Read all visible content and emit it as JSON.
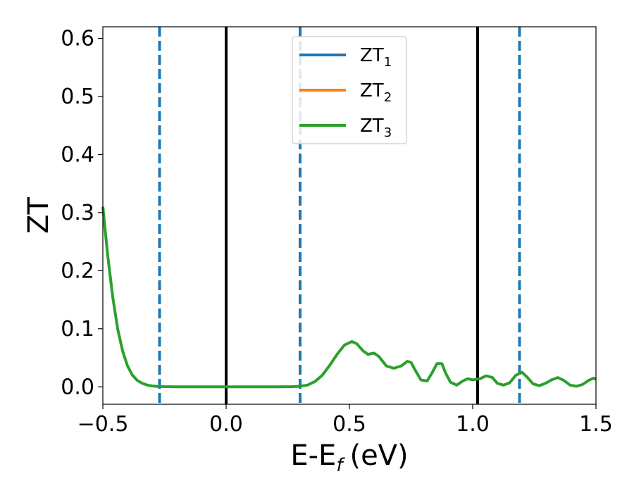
{
  "chart_data": {
    "type": "line",
    "xlabel": "E-E",
    "xlabel_sub": "f",
    "xlabel_unit": "(eV)",
    "ylabel": "ZT",
    "xlim": [
      -0.5,
      1.5
    ],
    "ylim": [
      -0.03,
      0.62
    ],
    "xticks": [
      -0.5,
      0.0,
      0.5,
      1.0,
      1.5
    ],
    "xtick_labels": [
      "−0.5",
      "0.0",
      "0.5",
      "1.0",
      "1.5"
    ],
    "yticks": [
      0.0,
      0.1,
      0.2,
      0.3,
      0.4,
      0.5,
      0.6
    ],
    "ytick_labels": [
      "0.0",
      "0.1",
      "0.2",
      "0.3",
      "0.4",
      "0.5",
      "0.6"
    ],
    "grid": false,
    "legend_position": "top-center",
    "series": [
      {
        "name": "ZT",
        "sub": "1",
        "color": "#1f77b4",
        "x": [],
        "y": []
      },
      {
        "name": "ZT",
        "sub": "2",
        "color": "#ff7f0e",
        "x": [],
        "y": []
      },
      {
        "name": "ZT",
        "sub": "3",
        "color": "#2ca02c",
        "x": [
          -0.5,
          -0.48,
          -0.46,
          -0.44,
          -0.42,
          -0.4,
          -0.38,
          -0.36,
          -0.34,
          -0.32,
          -0.3,
          -0.28,
          -0.25,
          -0.2,
          -0.1,
          0.0,
          0.1,
          0.2,
          0.27,
          0.3,
          0.33,
          0.36,
          0.39,
          0.42,
          0.45,
          0.48,
          0.51,
          0.53,
          0.555,
          0.575,
          0.6,
          0.62,
          0.65,
          0.68,
          0.71,
          0.735,
          0.75,
          0.765,
          0.79,
          0.815,
          0.835,
          0.855,
          0.875,
          0.89,
          0.91,
          0.935,
          0.96,
          0.98,
          1.0,
          1.03,
          1.055,
          1.08,
          1.1,
          1.125,
          1.15,
          1.175,
          1.2,
          1.22,
          1.245,
          1.27,
          1.295,
          1.32,
          1.345,
          1.37,
          1.395,
          1.42,
          1.445,
          1.47,
          1.49,
          1.51
        ],
        "y": [
          0.31,
          0.225,
          0.155,
          0.1,
          0.062,
          0.036,
          0.02,
          0.011,
          0.006,
          0.003,
          0.0015,
          0.0008,
          0.0003,
          0.0001,
          0.0,
          0.0,
          0.0,
          0.0,
          0.0003,
          0.001,
          0.003,
          0.009,
          0.02,
          0.037,
          0.056,
          0.072,
          0.078,
          0.074,
          0.062,
          0.056,
          0.058,
          0.052,
          0.036,
          0.032,
          0.036,
          0.044,
          0.042,
          0.03,
          0.012,
          0.01,
          0.024,
          0.04,
          0.04,
          0.024,
          0.008,
          0.003,
          0.01,
          0.014,
          0.012,
          0.014,
          0.019,
          0.016,
          0.006,
          0.003,
          0.007,
          0.02,
          0.025,
          0.017,
          0.005,
          0.002,
          0.006,
          0.012,
          0.016,
          0.011,
          0.003,
          0.001,
          0.004,
          0.011,
          0.015,
          0.013
        ]
      }
    ],
    "vlines": [
      {
        "x": 0.0,
        "style": "solid",
        "color": "#000000"
      },
      {
        "x": 1.02,
        "style": "solid",
        "color": "#000000"
      },
      {
        "x": -0.27,
        "style": "dashed",
        "color": "#1f77b4"
      },
      {
        "x": 0.3,
        "style": "dashed",
        "color": "#1f77b4"
      },
      {
        "x": 1.19,
        "style": "dashed",
        "color": "#1f77b4"
      }
    ]
  }
}
